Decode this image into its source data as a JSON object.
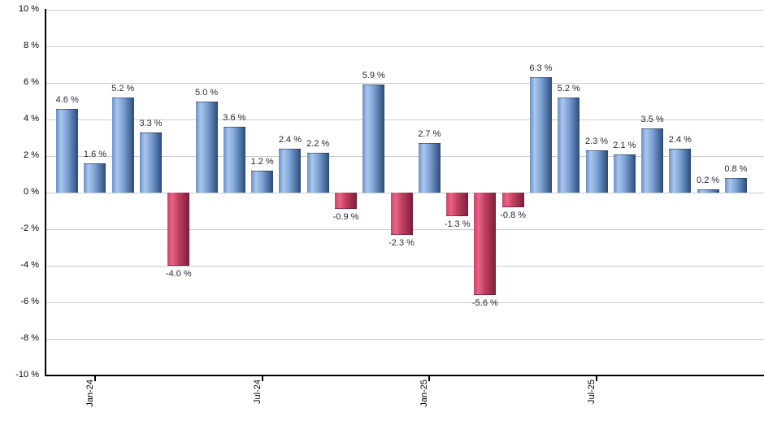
{
  "chart_data": {
    "type": "bar",
    "title": "",
    "xlabel": "",
    "ylabel": "",
    "ylim": [
      -10,
      10
    ],
    "ytick_step": 2,
    "grid": true,
    "legend_position": "none",
    "ytick_labels": [
      "10 %",
      "8 %",
      "6 %",
      "4 %",
      "2 %",
      "0 %",
      "-2 %",
      "-4 %",
      "-6 %",
      "-8 %",
      "-10 %"
    ],
    "xtick_labels": [
      {
        "label": "Jan-24",
        "bar_index": 1
      },
      {
        "label": "Jul-24",
        "bar_index": 7
      },
      {
        "label": "Jan-25",
        "bar_index": 13
      },
      {
        "label": "Jul-25",
        "bar_index": 19
      }
    ],
    "values": [
      4.6,
      1.6,
      5.2,
      3.3,
      -4.0,
      5.0,
      3.6,
      1.2,
      2.4,
      2.2,
      -0.9,
      5.9,
      -2.3,
      2.7,
      -1.3,
      -5.6,
      -0.8,
      6.3,
      5.2,
      2.3,
      2.1,
      3.5,
      2.4,
      0.2,
      0.8
    ],
    "value_labels": [
      "4.6 %",
      "1.6 %",
      "5.2 %",
      "3.3 %",
      "-4.0 %",
      "5.0 %",
      "3.6 %",
      "1.2 %",
      "2.4 %",
      "2.2 %",
      "-0.9 %",
      "5.9 %",
      "-2.3 %",
      "2.7 %",
      "-1.3 %",
      "-5.6 %",
      "-0.8 %",
      "6.3 %",
      "5.2 %",
      "2.3 %",
      "2.1 %",
      "3.5 %",
      "2.4 %",
      "0.2 %",
      "0.8 %"
    ],
    "colors": {
      "background": "#ffffff",
      "gridline": "#cccccc",
      "axis": "#000000",
      "tick_label_text": "#000000",
      "value_label_text": "#1f2633",
      "positive_bar_edge": "#6b8fc4",
      "positive_bar_light": "#a9c7ee",
      "positive_bar_mid": "#7fa3d6",
      "positive_bar_shade": "#4f72a5",
      "positive_bar_dark": "#2d4a75",
      "negative_bar_edge": "#cf4466",
      "negative_bar_light": "#e8648a",
      "negative_bar_mid": "#c04060",
      "negative_bar_shade": "#9a2c4c",
      "negative_bar_dark": "#771f38"
    }
  }
}
